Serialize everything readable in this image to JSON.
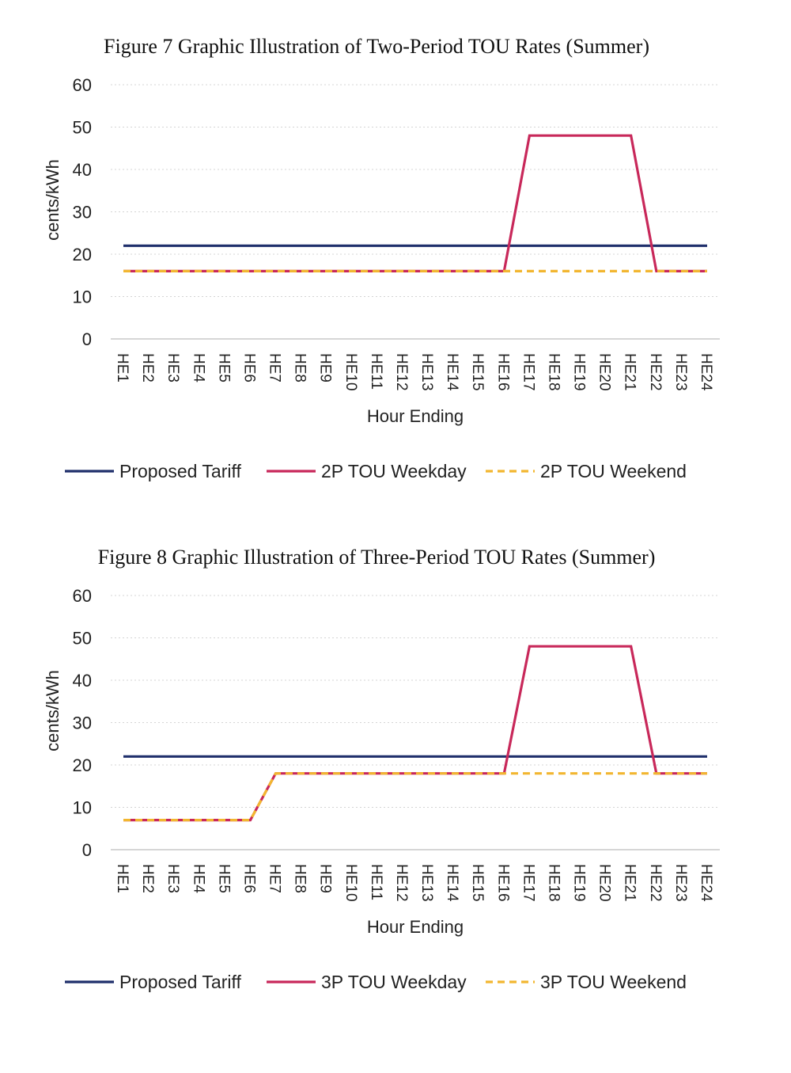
{
  "chart_data": [
    {
      "type": "line",
      "title": "Figure 7 Graphic Illustration of Two-Period TOU Rates (Summer)",
      "xlabel": "Hour Ending",
      "ylabel": "cents/kWh",
      "ylim": [
        0,
        60
      ],
      "yticks": [
        "0",
        "10",
        "20",
        "30",
        "40",
        "50",
        "60"
      ],
      "grid": true,
      "legend_position": "bottom",
      "categories": [
        "HE1",
        "HE2",
        "HE3",
        "HE4",
        "HE5",
        "HE6",
        "HE7",
        "HE8",
        "HE9",
        "HE10",
        "HE11",
        "HE12",
        "HE13",
        "HE14",
        "HE15",
        "HE16",
        "HE17",
        "HE18",
        "HE19",
        "HE20",
        "HE21",
        "HE22",
        "HE23",
        "HE24"
      ],
      "series": [
        {
          "name": "Proposed Tariff",
          "color": "#1f2f6b",
          "style": "solid",
          "values": [
            22,
            22,
            22,
            22,
            22,
            22,
            22,
            22,
            22,
            22,
            22,
            22,
            22,
            22,
            22,
            22,
            22,
            22,
            22,
            22,
            22,
            22,
            22,
            22
          ]
        },
        {
          "name": "2P TOU Weekday",
          "color": "#c8285a",
          "style": "solid",
          "values": [
            16,
            16,
            16,
            16,
            16,
            16,
            16,
            16,
            16,
            16,
            16,
            16,
            16,
            16,
            16,
            16,
            48,
            48,
            48,
            48,
            48,
            16,
            16,
            16
          ]
        },
        {
          "name": "2P TOU Weekend",
          "color": "#f2b630",
          "style": "dashed",
          "values": [
            16,
            16,
            16,
            16,
            16,
            16,
            16,
            16,
            16,
            16,
            16,
            16,
            16,
            16,
            16,
            16,
            16,
            16,
            16,
            16,
            16,
            16,
            16,
            16
          ]
        }
      ]
    },
    {
      "type": "line",
      "title": "Figure 8 Graphic Illustration of Three-Period TOU Rates (Summer)",
      "xlabel": "Hour Ending",
      "ylabel": "cents/kWh",
      "ylim": [
        0,
        60
      ],
      "yticks": [
        "0",
        "10",
        "20",
        "30",
        "40",
        "50",
        "60"
      ],
      "grid": true,
      "legend_position": "bottom",
      "categories": [
        "HE1",
        "HE2",
        "HE3",
        "HE4",
        "HE5",
        "HE6",
        "HE7",
        "HE8",
        "HE9",
        "HE10",
        "HE11",
        "HE12",
        "HE13",
        "HE14",
        "HE15",
        "HE16",
        "HE17",
        "HE18",
        "HE19",
        "HE20",
        "HE21",
        "HE22",
        "HE23",
        "HE24"
      ],
      "series": [
        {
          "name": "Proposed Tariff",
          "color": "#1f2f6b",
          "style": "solid",
          "values": [
            22,
            22,
            22,
            22,
            22,
            22,
            22,
            22,
            22,
            22,
            22,
            22,
            22,
            22,
            22,
            22,
            22,
            22,
            22,
            22,
            22,
            22,
            22,
            22
          ]
        },
        {
          "name": "3P TOU Weekday",
          "color": "#c8285a",
          "style": "solid",
          "values": [
            7,
            7,
            7,
            7,
            7,
            7,
            18,
            18,
            18,
            18,
            18,
            18,
            18,
            18,
            18,
            18,
            48,
            48,
            48,
            48,
            48,
            18,
            18,
            18
          ]
        },
        {
          "name": "3P TOU Weekend",
          "color": "#f2b630",
          "style": "dashed",
          "values": [
            7,
            7,
            7,
            7,
            7,
            7,
            18,
            18,
            18,
            18,
            18,
            18,
            18,
            18,
            18,
            18,
            18,
            18,
            18,
            18,
            18,
            18,
            18,
            18
          ]
        }
      ]
    }
  ]
}
